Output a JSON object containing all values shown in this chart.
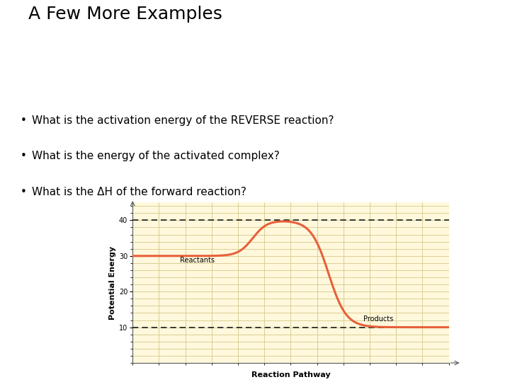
{
  "title": "A Few More Examples",
  "bullets": [
    "What is the activation energy of the REVERSE reaction?",
    "What is the energy of the activated complex?",
    "What is the ΔH of the forward reaction?"
  ],
  "xlabel": "Reaction Pathway",
  "ylabel": "Potential Energy",
  "reactant_label": "Reactants",
  "product_label": "Products",
  "reactant_energy": 30,
  "product_energy": 10,
  "peak_energy": 40,
  "dashed_line_y1": 40,
  "dashed_line_y2": 10,
  "ylim": [
    0,
    45
  ],
  "xlim": [
    0,
    10
  ],
  "yticks": [
    10,
    20,
    30,
    40
  ],
  "background_color": "#FFF8DC",
  "grid_color": "#D4C98A",
  "curve_color": "#E8603A",
  "dashed_color": "#1a1a1a",
  "title_fontsize": 18,
  "bullet_fontsize": 11,
  "axis_label_fontsize": 8,
  "tick_fontsize": 7
}
